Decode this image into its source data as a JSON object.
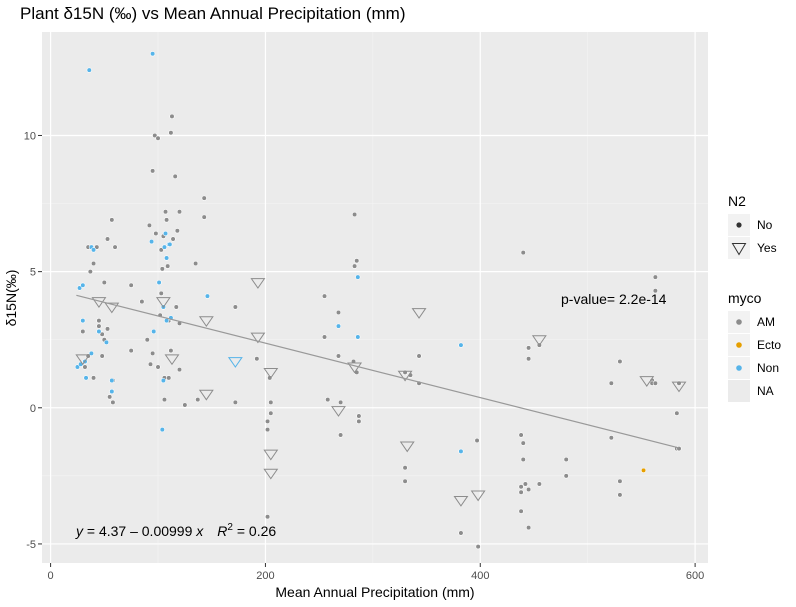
{
  "chart_data": {
    "type": "scatter",
    "title": "Plant  δ15N (‰) vs Mean Annual Precipitation (mm)",
    "xlabel": "Mean Annual Precipitation (mm)",
    "ylabel": "δ15N(‰)",
    "xlim": [
      -8,
      612
    ],
    "ylim": [
      -5.7,
      13.8
    ],
    "x_ticks": [
      0,
      200,
      400,
      600
    ],
    "y_ticks": [
      -5,
      0,
      5,
      10
    ],
    "grid": true,
    "legend_placement": "right",
    "legends": {
      "n2": {
        "title": "N2",
        "entries": [
          {
            "label": "No",
            "shape": "circle"
          },
          {
            "label": "Yes",
            "shape": "triangle-down"
          }
        ]
      },
      "myco": {
        "title": "myco",
        "entries": [
          {
            "label": "AM",
            "color": "#8c8c8c"
          },
          {
            "label": "Ecto",
            "color": "#e69f00"
          },
          {
            "label": "Non",
            "color": "#56b4e9"
          },
          {
            "label": "NA",
            "color": "#ebebeb"
          }
        ]
      }
    },
    "annotations": {
      "p_value": "p-value= 2.2e-14",
      "equation_y": "y",
      "equation_body": " = 4.37 – 0.00999 ",
      "equation_x": "x",
      "equation_r": "R",
      "equation_sup": "2",
      "equation_tail": " = 0.26"
    },
    "regression": {
      "intercept": 4.37,
      "slope": -0.00999,
      "x_range": [
        24,
        585
      ]
    },
    "series": [
      {
        "name": "AM",
        "shape": "circle",
        "color": "#8c8c8c",
        "points": [
          [
            30,
            2.8
          ],
          [
            32,
            1.5
          ],
          [
            35,
            5.9
          ],
          [
            35,
            1.9
          ],
          [
            37,
            5.0
          ],
          [
            40,
            5.3
          ],
          [
            40,
            1.1
          ],
          [
            43,
            5.9
          ],
          [
            45,
            3.2
          ],
          [
            45,
            3.0
          ],
          [
            48,
            2.7
          ],
          [
            48,
            1.9
          ],
          [
            50,
            4.6
          ],
          [
            50,
            2.5
          ],
          [
            53,
            6.2
          ],
          [
            53,
            2.9
          ],
          [
            55,
            0.4
          ],
          [
            57,
            6.9
          ],
          [
            58,
            0.2
          ],
          [
            58,
            1.0
          ],
          [
            60,
            5.9
          ],
          [
            75,
            2.1
          ],
          [
            75,
            4.5
          ],
          [
            85,
            3.9
          ],
          [
            90,
            2.5
          ],
          [
            92,
            6.7
          ],
          [
            93,
            1.6
          ],
          [
            95,
            2.0
          ],
          [
            95,
            8.7
          ],
          [
            97,
            10.0
          ],
          [
            98,
            6.4
          ],
          [
            100,
            9.9
          ],
          [
            100,
            1.5
          ],
          [
            102,
            3.4
          ],
          [
            103,
            5.8
          ],
          [
            103,
            4.2
          ],
          [
            104,
            5.1
          ],
          [
            105,
            6.3
          ],
          [
            106,
            1.1
          ],
          [
            106,
            0.3
          ],
          [
            107,
            7.2
          ],
          [
            108,
            6.9
          ],
          [
            109,
            5.2
          ],
          [
            110,
            1.1
          ],
          [
            110,
            3.2
          ],
          [
            112,
            10.1
          ],
          [
            112,
            2.1
          ],
          [
            113,
            10.7
          ],
          [
            114,
            6.2
          ],
          [
            116,
            8.5
          ],
          [
            117,
            3.7
          ],
          [
            118,
            6.5
          ],
          [
            120,
            7.2
          ],
          [
            120,
            3.1
          ],
          [
            120,
            1.4
          ],
          [
            125,
            0.1
          ],
          [
            135,
            5.3
          ],
          [
            137,
            0.3
          ],
          [
            143,
            7.0
          ],
          [
            143,
            7.7
          ],
          [
            172,
            3.7
          ],
          [
            172,
            0.2
          ],
          [
            192,
            1.8
          ],
          [
            202,
            -0.5
          ],
          [
            202,
            -0.8
          ],
          [
            202,
            -4.0
          ],
          [
            204,
            1.1
          ],
          [
            205,
            -0.2
          ],
          [
            205,
            0.2
          ],
          [
            255,
            4.1
          ],
          [
            255,
            2.6
          ],
          [
            258,
            0.3
          ],
          [
            268,
            3.5
          ],
          [
            268,
            1.9
          ],
          [
            270,
            0.2
          ],
          [
            270,
            -1.0
          ],
          [
            282,
            1.7
          ],
          [
            283,
            7.1
          ],
          [
            283,
            5.2
          ],
          [
            285,
            5.4
          ],
          [
            285,
            1.3
          ],
          [
            287,
            -0.3
          ],
          [
            287,
            -0.5
          ],
          [
            330,
            1.3
          ],
          [
            330,
            -2.2
          ],
          [
            330,
            -2.7
          ],
          [
            335,
            1.2
          ],
          [
            343,
            0.9
          ],
          [
            343,
            1.9
          ],
          [
            382,
            -4.6
          ],
          [
            397,
            -1.2
          ],
          [
            398,
            -5.1
          ],
          [
            438,
            -1.0
          ],
          [
            438,
            -2.9
          ],
          [
            438,
            -3.1
          ],
          [
            438,
            -3.8
          ],
          [
            440,
            5.7
          ],
          [
            440,
            -1.3
          ],
          [
            440,
            -1.9
          ],
          [
            442,
            -2.8
          ],
          [
            445,
            2.2
          ],
          [
            445,
            1.8
          ],
          [
            445,
            -3.0
          ],
          [
            445,
            -4.4
          ],
          [
            455,
            2.3
          ],
          [
            455,
            -2.8
          ],
          [
            480,
            -1.9
          ],
          [
            480,
            -2.5
          ],
          [
            522,
            0.9
          ],
          [
            522,
            -1.1
          ],
          [
            530,
            1.7
          ],
          [
            530,
            -2.7
          ],
          [
            530,
            -3.2
          ],
          [
            560,
            1.0
          ],
          [
            560,
            0.9
          ],
          [
            563,
            4.8
          ],
          [
            563,
            4.3
          ],
          [
            563,
            0.9
          ],
          [
            583,
            -0.2
          ],
          [
            583,
            -1.5
          ],
          [
            585,
            -1.5
          ],
          [
            585,
            0.9
          ]
        ]
      },
      {
        "name": "Ecto",
        "shape": "circle",
        "color": "#e69f00",
        "points": [
          [
            552,
            -2.3
          ]
        ]
      },
      {
        "name": "Non",
        "shape": "circle",
        "color": "#56b4e9",
        "points": [
          [
            25,
            1.5
          ],
          [
            27,
            4.4
          ],
          [
            28,
            1.6
          ],
          [
            30,
            4.5
          ],
          [
            30,
            3.2
          ],
          [
            32,
            1.7
          ],
          [
            33,
            1.1
          ],
          [
            36,
            12.4
          ],
          [
            38,
            5.9
          ],
          [
            38,
            2.0
          ],
          [
            40,
            5.8
          ],
          [
            45,
            2.8
          ],
          [
            52,
            2.4
          ],
          [
            57,
            1.0
          ],
          [
            57,
            0.6
          ],
          [
            94,
            6.1
          ],
          [
            95,
            13.0
          ],
          [
            96,
            2.8
          ],
          [
            101,
            4.6
          ],
          [
            104,
            -0.8
          ],
          [
            105,
            3.7
          ],
          [
            105,
            1.0
          ],
          [
            106,
            5.9
          ],
          [
            107,
            6.4
          ],
          [
            108,
            3.2
          ],
          [
            108,
            5.5
          ],
          [
            110,
            6.0
          ],
          [
            111,
            6.0
          ],
          [
            112,
            3.3
          ],
          [
            146,
            4.1
          ],
          [
            268,
            3.0
          ],
          [
            286,
            4.8
          ],
          [
            286,
            2.6
          ],
          [
            382,
            2.3
          ],
          [
            382,
            -1.6
          ]
        ]
      },
      {
        "name": "N2 Yes",
        "shape": "triangle-down",
        "color": "#8c8c8c",
        "points": [
          [
            30,
            1.8
          ],
          [
            45,
            3.9
          ],
          [
            57,
            3.7
          ],
          [
            105,
            3.9
          ],
          [
            113,
            1.8
          ],
          [
            145,
            3.2
          ],
          [
            145,
            0.5
          ],
          [
            193,
            4.6
          ],
          [
            193,
            2.6
          ],
          [
            205,
            1.3
          ],
          [
            205,
            -1.7
          ],
          [
            205,
            -2.4
          ],
          [
            268,
            -0.1
          ],
          [
            283,
            1.5
          ],
          [
            330,
            1.2
          ],
          [
            332,
            -1.4
          ],
          [
            343,
            3.5
          ],
          [
            382,
            -3.4
          ],
          [
            398,
            -3.2
          ],
          [
            455,
            2.5
          ],
          [
            555,
            1.0
          ],
          [
            585,
            0.8
          ]
        ]
      },
      {
        "name": "Non N2 Yes",
        "shape": "triangle-down",
        "color": "#56b4e9",
        "points": [
          [
            172,
            1.7
          ]
        ]
      }
    ]
  }
}
